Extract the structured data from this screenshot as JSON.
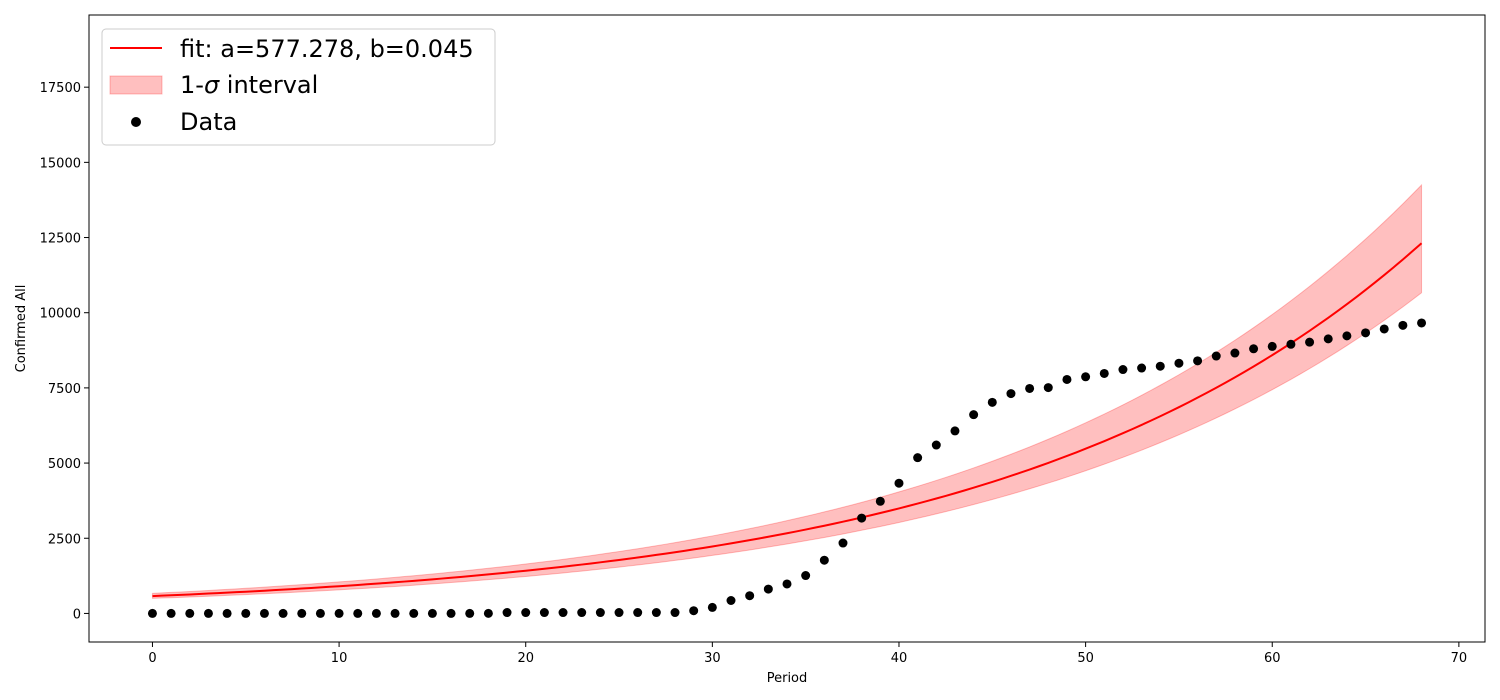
{
  "chart_data": {
    "type": "scatter",
    "xlabel": "Period",
    "ylabel": "Confirmed All",
    "xlim": [
      -3.4,
      71.4
    ],
    "ylim": [
      -950,
      19900
    ],
    "xticks": [
      0,
      10,
      20,
      30,
      40,
      50,
      60,
      70
    ],
    "yticks": [
      0,
      2500,
      5000,
      7500,
      10000,
      12500,
      15000,
      17500
    ],
    "grid": false,
    "legend_position": "top-left",
    "fit": {
      "label": "fit: a=577.278, b=0.045",
      "a": 577.278,
      "b": 0.045,
      "x_range": [
        0,
        68
      ],
      "color": "#ff0000"
    },
    "interval": {
      "label_prefix": "1-",
      "label_symbol": "σ",
      "label_suffix": " interval",
      "upper_a": 668,
      "lower_a": 500,
      "b": 0.045,
      "color": "#ff9999"
    },
    "series": [
      {
        "name": "Data",
        "color": "#000000",
        "x": [
          0,
          1,
          2,
          3,
          4,
          5,
          6,
          7,
          8,
          9,
          10,
          11,
          12,
          13,
          14,
          15,
          16,
          17,
          18,
          19,
          20,
          21,
          22,
          23,
          24,
          25,
          26,
          27,
          28,
          29,
          30,
          31,
          32,
          33,
          34,
          35,
          36,
          37,
          38,
          39,
          40,
          41,
          42,
          43,
          44,
          45,
          46,
          47,
          48,
          49,
          50,
          51,
          52,
          53,
          54,
          55,
          56,
          57,
          58,
          59,
          60,
          61,
          62,
          63,
          64,
          65,
          66,
          67,
          68
        ],
        "values": [
          1,
          1,
          1,
          1,
          1,
          1,
          1,
          1,
          1,
          1,
          1,
          1,
          1,
          1,
          1,
          1,
          1,
          1,
          2,
          30,
          30,
          30,
          30,
          30,
          30,
          30,
          30,
          30,
          30,
          90,
          200,
          430,
          590,
          810,
          980,
          1260,
          1770,
          2340,
          3170,
          3730,
          4330,
          5180,
          5600,
          6070,
          6610,
          7020,
          7310,
          7480,
          7510,
          7780,
          7870,
          7980,
          8110,
          8160,
          8220,
          8320,
          8400,
          8560,
          8660,
          8800,
          8880,
          8950,
          9020,
          9130,
          9230,
          9330,
          9460,
          9580,
          9660
        ]
      }
    ]
  }
}
